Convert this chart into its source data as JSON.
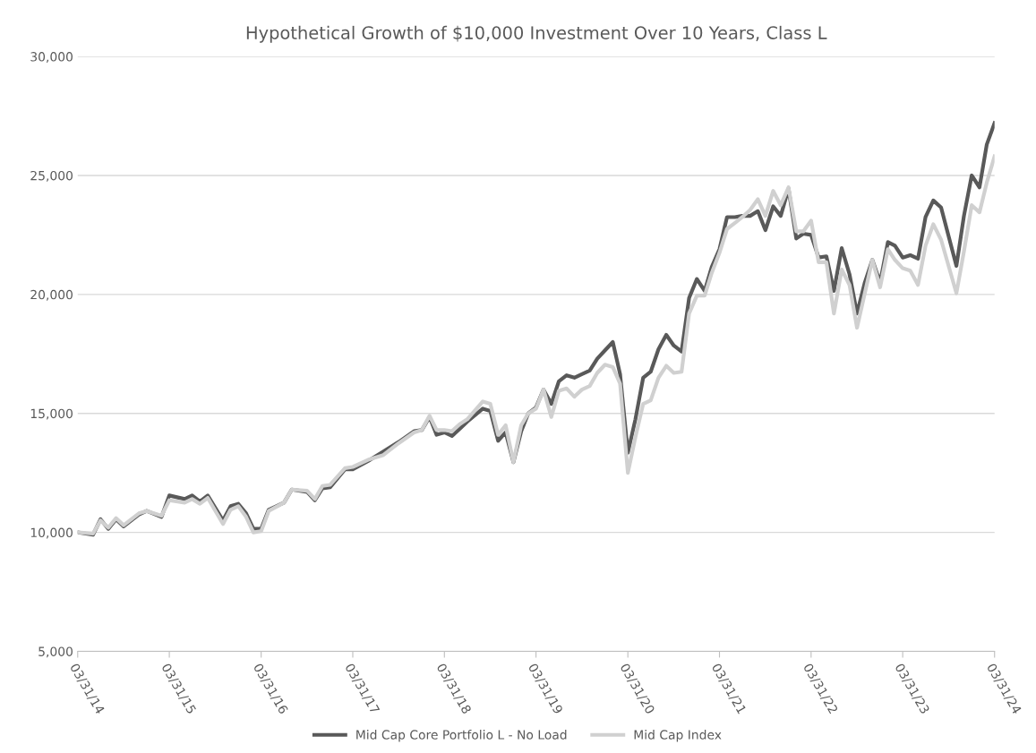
{
  "chart_data": {
    "type": "line",
    "title": "Hypothetical Growth of $10,000 Investment Over 10 Years, Class L",
    "x": [
      "2014-03-31",
      "2014-05-31",
      "2014-06-30",
      "2014-07-31",
      "2014-08-31",
      "2014-09-30",
      "2014-11-30",
      "2014-12-31",
      "2015-02-28",
      "2015-03-31",
      "2015-05-31",
      "2015-06-30",
      "2015-07-31",
      "2015-08-31",
      "2015-10-31",
      "2015-11-30",
      "2015-12-31",
      "2016-01-31",
      "2016-02-29",
      "2016-03-31",
      "2016-04-30",
      "2016-06-30",
      "2016-07-31",
      "2016-09-30",
      "2016-10-31",
      "2016-11-30",
      "2016-12-31",
      "2017-02-28",
      "2017-03-31",
      "2017-05-31",
      "2017-07-31",
      "2017-09-30",
      "2017-11-30",
      "2017-12-31",
      "2018-01-31",
      "2018-02-28",
      "2018-03-31",
      "2018-04-30",
      "2018-05-31",
      "2018-06-30",
      "2018-08-31",
      "2018-09-30",
      "2018-10-31",
      "2018-11-30",
      "2018-12-31",
      "2019-01-31",
      "2019-02-28",
      "2019-03-31",
      "2019-04-30",
      "2019-05-31",
      "2019-06-30",
      "2019-07-31",
      "2019-08-31",
      "2019-09-30",
      "2019-10-31",
      "2019-11-30",
      "2019-12-31",
      "2020-01-31",
      "2020-02-29",
      "2020-03-31",
      "2020-04-30",
      "2020-05-31",
      "2020-06-30",
      "2020-07-31",
      "2020-08-31",
      "2020-09-30",
      "2020-10-31",
      "2020-11-30",
      "2020-12-31",
      "2021-01-31",
      "2021-02-28",
      "2021-03-31",
      "2021-04-30",
      "2021-05-31",
      "2021-06-30",
      "2021-07-31",
      "2021-08-31",
      "2021-09-30",
      "2021-10-31",
      "2021-11-30",
      "2021-12-31",
      "2022-01-31",
      "2022-02-28",
      "2022-03-31",
      "2022-04-30",
      "2022-05-31",
      "2022-06-30",
      "2022-07-31",
      "2022-08-31",
      "2022-09-30",
      "2022-10-31",
      "2022-11-30",
      "2022-12-31",
      "2023-01-31",
      "2023-02-28",
      "2023-03-31",
      "2023-04-30",
      "2023-05-31",
      "2023-06-30",
      "2023-07-31",
      "2023-08-31",
      "2023-10-31",
      "2023-11-30",
      "2023-12-31",
      "2024-01-31",
      "2024-02-29",
      "2024-03-31"
    ],
    "series": [
      {
        "name": "Mid Cap Core Portfolio L - No Load",
        "color": "#595959",
        "values": [
          10000,
          9900,
          10550,
          10150,
          10550,
          10250,
          10750,
          10900,
          10650,
          11550,
          11400,
          11550,
          11300,
          11550,
          10500,
          11100,
          11200,
          10800,
          10150,
          10150,
          10950,
          11250,
          11800,
          11700,
          11350,
          11850,
          11900,
          12650,
          12650,
          13000,
          13400,
          13800,
          14250,
          14300,
          14850,
          14100,
          14200,
          14050,
          14350,
          14650,
          15200,
          15100,
          13850,
          14200,
          12950,
          14250,
          15000,
          15250,
          16000,
          15400,
          16350,
          16600,
          16500,
          16650,
          16800,
          17300,
          17650,
          18000,
          16650,
          13350,
          14750,
          16500,
          16750,
          17700,
          18300,
          17850,
          17600,
          19850,
          20650,
          20150,
          21150,
          21900,
          23250,
          23250,
          23300,
          23300,
          23500,
          22700,
          23700,
          23300,
          24450,
          22350,
          22550,
          22500,
          21550,
          21600,
          20150,
          21950,
          20850,
          19200,
          20500,
          21450,
          20500,
          22200,
          22050,
          21550,
          21650,
          21500,
          23250,
          23950,
          23650,
          21200,
          23300,
          25000,
          24500,
          26300,
          27200
        ]
      },
      {
        "name": "Mid Cap Index",
        "color": "#d0d0d0",
        "values": [
          10000,
          9950,
          10500,
          10200,
          10600,
          10300,
          10800,
          10900,
          10700,
          11350,
          11250,
          11400,
          11200,
          11450,
          10350,
          10950,
          11100,
          10650,
          10000,
          10050,
          10900,
          11250,
          11800,
          11750,
          11400,
          11950,
          12000,
          12700,
          12750,
          13050,
          13250,
          13750,
          14200,
          14300,
          14900,
          14300,
          14300,
          14250,
          14550,
          14750,
          15500,
          15400,
          14100,
          14500,
          12950,
          14500,
          15000,
          15200,
          16000,
          14850,
          15950,
          16050,
          15700,
          16000,
          16150,
          16700,
          17050,
          16950,
          16250,
          12500,
          14000,
          15400,
          15550,
          16500,
          17000,
          16700,
          16750,
          19200,
          19950,
          19950,
          20900,
          21750,
          22750,
          23000,
          23250,
          23550,
          24000,
          23300,
          24350,
          23750,
          24500,
          22650,
          22650,
          23100,
          21350,
          21350,
          19200,
          21050,
          20400,
          18600,
          20050,
          21450,
          20300,
          21900,
          21450,
          21100,
          21000,
          20400,
          22050,
          22950,
          22300,
          20050,
          21800,
          23750,
          23450,
          24700,
          25800
        ]
      }
    ],
    "xlim": [
      "2014-03-31",
      "2024-03-31"
    ],
    "xticks": [
      {
        "value": "2014-03-31",
        "label": "03/31/14"
      },
      {
        "value": "2015-03-31",
        "label": "03/31/15"
      },
      {
        "value": "2016-03-31",
        "label": "03/31/16"
      },
      {
        "value": "2017-03-31",
        "label": "03/31/17"
      },
      {
        "value": "2018-03-31",
        "label": "03/31/18"
      },
      {
        "value": "2019-03-31",
        "label": "03/31/19"
      },
      {
        "value": "2020-03-31",
        "label": "03/31/20"
      },
      {
        "value": "2021-03-31",
        "label": "03/31/21"
      },
      {
        "value": "2022-03-31",
        "label": "03/31/22"
      },
      {
        "value": "2023-03-31",
        "label": "03/31/23"
      },
      {
        "value": "2024-03-31",
        "label": "03/31/24"
      }
    ],
    "ylim": [
      5000,
      30000
    ],
    "yticks": [
      {
        "value": 5000,
        "label": "5,000"
      },
      {
        "value": 10000,
        "label": "10,000"
      },
      {
        "value": 15000,
        "label": "15,000"
      },
      {
        "value": 20000,
        "label": "20,000"
      },
      {
        "value": 25000,
        "label": "25,000"
      },
      {
        "value": 30000,
        "label": "30,000"
      }
    ],
    "grid": "y",
    "legend": "bottom",
    "marker": "none",
    "line_style": "solid"
  }
}
